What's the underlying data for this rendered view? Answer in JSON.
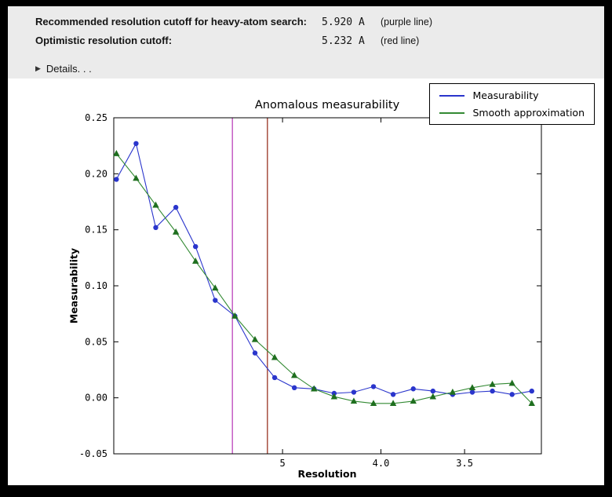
{
  "info_panel": {
    "rows": [
      {
        "label": "Recommended resolution cutoff for heavy-atom search:",
        "value": "5.920 A",
        "note": "(purple line)"
      },
      {
        "label": "Optimistic resolution cutoff:",
        "value": "5.232 A",
        "note": "(red line)"
      }
    ],
    "details": {
      "icon": "disclosure-triangle",
      "label": "Details. . ."
    }
  },
  "chart_data": {
    "type": "line",
    "title": "Anomalous measurability",
    "xlabel": "Resolution",
    "ylabel": "Measurability",
    "x_axis_unit": "1/d^2 (A^-2), resolution decreases to the right",
    "xlim": [
      0.0014,
      0.0992
    ],
    "ylim": [
      -0.05,
      0.25
    ],
    "grid": false,
    "legend_position": "top-right",
    "x_ticks": [
      {
        "value": 0.04,
        "label": "5"
      },
      {
        "value": 0.0625,
        "label": "4.0"
      },
      {
        "value": 0.081633,
        "label": "3.5"
      }
    ],
    "y_ticks": [
      {
        "value": 0.25,
        "label": "0.25"
      },
      {
        "value": 0.2,
        "label": "0.20"
      },
      {
        "value": 0.15,
        "label": "0.15"
      },
      {
        "value": 0.1,
        "label": "0.10"
      },
      {
        "value": 0.05,
        "label": "0.05"
      },
      {
        "value": 0.0,
        "label": "0.00"
      },
      {
        "value": -0.05,
        "label": "-0.05"
      }
    ],
    "series": [
      {
        "name": "Measurability",
        "color": "#2a35cc",
        "marker": "circle",
        "x": [
          0.002,
          0.0065,
          0.011,
          0.0156,
          0.0201,
          0.0246,
          0.0291,
          0.0337,
          0.0382,
          0.0427,
          0.0472,
          0.0518,
          0.0563,
          0.0608,
          0.0653,
          0.0699,
          0.0744,
          0.0789,
          0.0834,
          0.088,
          0.0925,
          0.097
        ],
        "y": [
          0.195,
          0.227,
          0.152,
          0.17,
          0.135,
          0.087,
          0.073,
          0.04,
          0.018,
          0.009,
          0.008,
          0.004,
          0.005,
          0.01,
          0.003,
          0.008,
          0.006,
          0.003,
          0.005,
          0.006,
          0.003,
          0.006
        ]
      },
      {
        "name": "Smooth approximation",
        "color": "#338a33",
        "marker": "triangle",
        "marker_color": "#1f6f1f",
        "x": [
          0.002,
          0.0065,
          0.011,
          0.0156,
          0.0201,
          0.0246,
          0.0291,
          0.0337,
          0.0382,
          0.0427,
          0.0472,
          0.0518,
          0.0563,
          0.0608,
          0.0653,
          0.0699,
          0.0744,
          0.0789,
          0.0834,
          0.088,
          0.0925,
          0.097
        ],
        "y": [
          0.218,
          0.196,
          0.172,
          0.148,
          0.122,
          0.098,
          0.073,
          0.052,
          0.036,
          0.02,
          0.008,
          0.001,
          -0.003,
          -0.005,
          -0.005,
          -0.003,
          0.001,
          0.005,
          0.009,
          0.012,
          0.013,
          -0.005
        ]
      }
    ],
    "vlines": [
      {
        "name": "purple-line",
        "x": 0.02853,
        "resolution_A": 5.92,
        "color": "#bb44bb"
      },
      {
        "name": "red-line",
        "x": 0.03654,
        "resolution_A": 5.232,
        "color": "#993322"
      }
    ]
  }
}
